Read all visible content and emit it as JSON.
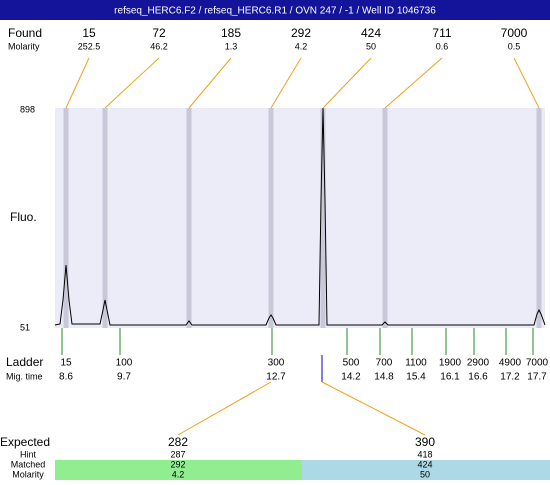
{
  "header": {
    "title": "refseq_HERC6.F2 / refseq_HERC6.R1 / OVN 247 / -1 / Well ID 1046736"
  },
  "found": {
    "label": "Found",
    "molarity_label": "Molarity",
    "sizes": [
      "15",
      "72",
      "185",
      "292",
      "424",
      "711",
      "7000"
    ],
    "molarity": [
      "252.5",
      "46.2",
      "1.3",
      "4.2",
      "50",
      "0.6",
      "0.5"
    ]
  },
  "axis": {
    "label": "Fluo.",
    "top": "898",
    "bottom": "51"
  },
  "ladder": {
    "label": "Ladder",
    "time_label": "Mig. time",
    "sizes": [
      "15",
      "100",
      "300",
      "500",
      "700",
      "1100",
      "1900",
      "2900",
      "4900",
      "7000"
    ],
    "times": [
      "8.6",
      "9.7",
      "12.7",
      "14.2",
      "14.8",
      "15.4",
      "16.1",
      "16.6",
      "17.2",
      "17.7"
    ]
  },
  "expected": {
    "label": "Expected",
    "hint_label": "Hint",
    "matched_label": "Matched",
    "molarity_label": "Molarity",
    "columns": [
      {
        "expected": "282",
        "hint": "287",
        "matched": "292",
        "molarity": "4.2"
      },
      {
        "expected": "390",
        "hint": "418",
        "matched": "424",
        "molarity": "50"
      }
    ]
  }
}
